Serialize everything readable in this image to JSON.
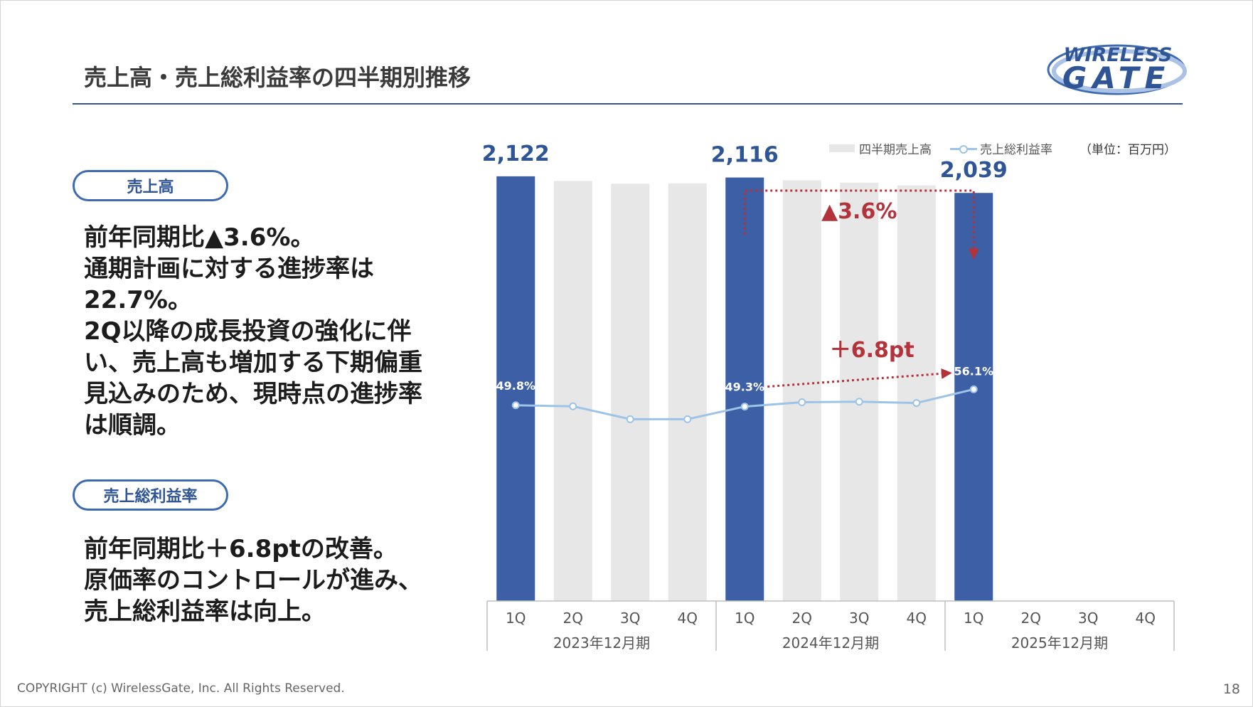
{
  "slide": {
    "title": "売上高・売上総利益率の四半期別推移",
    "copyright": "COPYRIGHT (c) WirelessGate, Inc. All Rights Reserved.",
    "page_number": "18",
    "logo": {
      "line1": "WIRELESS",
      "line2": "GATE"
    }
  },
  "sections": {
    "sales": {
      "pill": "売上高",
      "lines": [
        "前年同期比▲3.6%。",
        "通期計画に対する進捗率は",
        "22.7%。",
        "2Q以降の成長投資の強化に伴",
        "い、売上高も増加する下期偏重",
        "見込みのため、現時点の進捗率",
        "は順調。"
      ]
    },
    "margin": {
      "pill": "売上総利益率",
      "lines": [
        "前年同期比＋6.8ptの改善。",
        "原価率のコントロールが進み、",
        "売上総利益率は向上。"
      ]
    }
  },
  "legend": {
    "bar": "四半期売上高",
    "line": "売上総利益率",
    "unit": "（単位：百万円）"
  },
  "colors": {
    "highlight_bar": "#3c5fa6",
    "other_bar": "#e7e7e7",
    "line": "#9dc3e6",
    "annotation": "#b4323a",
    "value_label": "#2f5597"
  },
  "chart_data": {
    "type": "bar",
    "categories": [
      "1Q",
      "2Q",
      "3Q",
      "4Q",
      "1Q",
      "2Q",
      "3Q",
      "4Q",
      "1Q",
      "2Q",
      "3Q",
      "4Q"
    ],
    "groups": [
      "2023年12月期",
      "2024年12月期",
      "2025年12月期"
    ],
    "series": [
      {
        "name": "四半期売上高",
        "type": "bar",
        "values": [
          2122,
          2099,
          2085,
          2087,
          2116,
          2102,
          2090,
          2077,
          2039,
          null,
          null,
          null
        ],
        "highlight": [
          true,
          false,
          false,
          false,
          true,
          false,
          false,
          false,
          true,
          false,
          false,
          false
        ],
        "value_labels": [
          "2,122",
          "",
          "",
          "",
          "2,116",
          "",
          "",
          "",
          "2,039",
          "",
          "",
          ""
        ]
      },
      {
        "name": "売上総利益率",
        "type": "line",
        "values": [
          49.8,
          49.4,
          44.3,
          44.3,
          49.3,
          51.0,
          51.2,
          50.7,
          56.1,
          null,
          null,
          null
        ],
        "value_labels": [
          "49.8%",
          "",
          "",
          "",
          "49.3%",
          "",
          "",
          "",
          "56.1%",
          "",
          "",
          ""
        ]
      }
    ],
    "annotations": {
      "sales_change": "▲3.6%",
      "margin_change": "＋6.8pt"
    },
    "bar_ylim": [
      0,
      2150
    ],
    "line_ylim": [
      -12,
      75
    ]
  }
}
